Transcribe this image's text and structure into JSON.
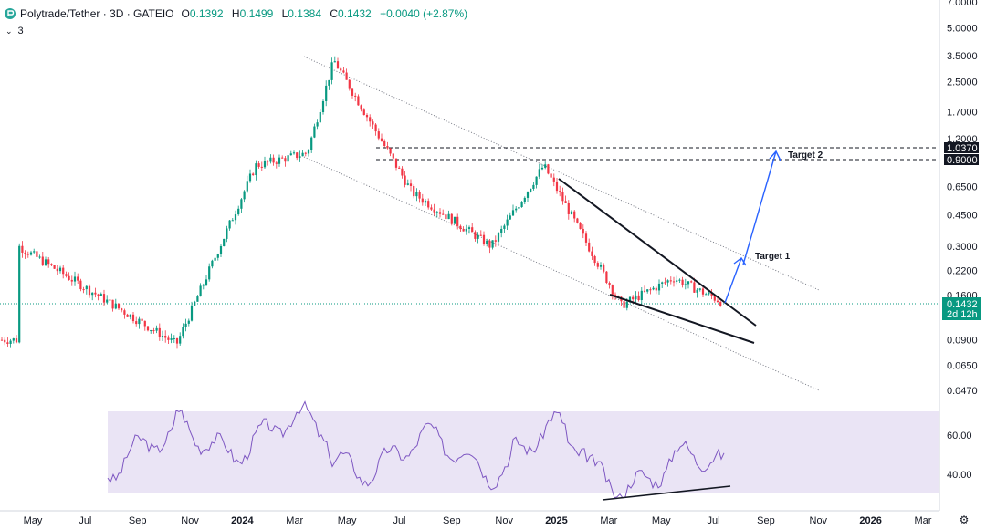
{
  "header": {
    "symbol": "Polytrade/Tether · 3D · GATEIO",
    "open_label": "O",
    "open": "0.1392",
    "high_label": "H",
    "high": "0.1499",
    "low_label": "L",
    "low": "0.1384",
    "close_label": "C",
    "close": "0.1432",
    "change": "+0.0040 (+2.87%)",
    "indicator_count": "3"
  },
  "price_axis": {
    "ticks": [
      "7.0000",
      "5.0000",
      "3.5000",
      "2.5000",
      "1.7000",
      "1.2000",
      "0.6500",
      "0.4500",
      "0.3000",
      "0.2200",
      "0.1600",
      "0.0900",
      "0.0650",
      "0.0470"
    ],
    "labels": [
      {
        "text": "1.0370",
        "kind": "dark"
      },
      {
        "text": "0.9000",
        "kind": "dark"
      },
      {
        "text": "0.1432",
        "kind": "green"
      },
      {
        "text": "2d 12h",
        "kind": "green"
      }
    ]
  },
  "rsi_axis": {
    "ticks": [
      "60.00",
      "40.00"
    ]
  },
  "time_axis": {
    "ticks": [
      "May",
      "Jul",
      "Sep",
      "Nov",
      "2024",
      "Mar",
      "May",
      "Jul",
      "Sep",
      "Nov",
      "2025",
      "Mar",
      "May",
      "Jul",
      "Sep",
      "Nov",
      "2026",
      "Mar"
    ],
    "bold": [
      "2024",
      "2025",
      "2026"
    ]
  },
  "annotations": {
    "target1": "Target 1",
    "target2": "Target 2"
  },
  "colors": {
    "up": "#089981",
    "down": "#f23645",
    "rsi": "#7e57c2",
    "rsi_band": "#7e57c2",
    "arrow": "#2962ff",
    "price_line": "#089981"
  },
  "chart_data": {
    "type": "candlestick",
    "title": "Polytrade/Tether · 3D · GATEIO",
    "y_scale": "log",
    "y_range": [
      0.04,
      7.0
    ],
    "x_range": [
      "2023-04",
      "2026-04"
    ],
    "last_price": 0.1432,
    "key_points": [
      {
        "date": "2023-04",
        "price": 0.09
      },
      {
        "date": "2023-04",
        "price": 0.3
      },
      {
        "date": "2023-10",
        "price": 0.085
      },
      {
        "date": "2024-01",
        "price": 0.85
      },
      {
        "date": "2024-03",
        "price": 1.0
      },
      {
        "date": "2024-04",
        "price": 3.3
      },
      {
        "date": "2024-07",
        "price": 0.6
      },
      {
        "date": "2024-10",
        "price": 0.3
      },
      {
        "date": "2024-12",
        "price": 0.85
      },
      {
        "date": "2025-03",
        "price": 0.14
      },
      {
        "date": "2025-05",
        "price": 0.2
      },
      {
        "date": "2025-07",
        "price": 0.1432
      }
    ],
    "horizontal_levels": [
      1.037,
      0.9
    ],
    "targets": [
      {
        "label": "Target 1",
        "price": 0.3
      },
      {
        "label": "Target 2",
        "price": 1.037
      }
    ],
    "rsi": {
      "band": [
        30,
        70
      ],
      "ticks": [
        60,
        40
      ]
    }
  }
}
